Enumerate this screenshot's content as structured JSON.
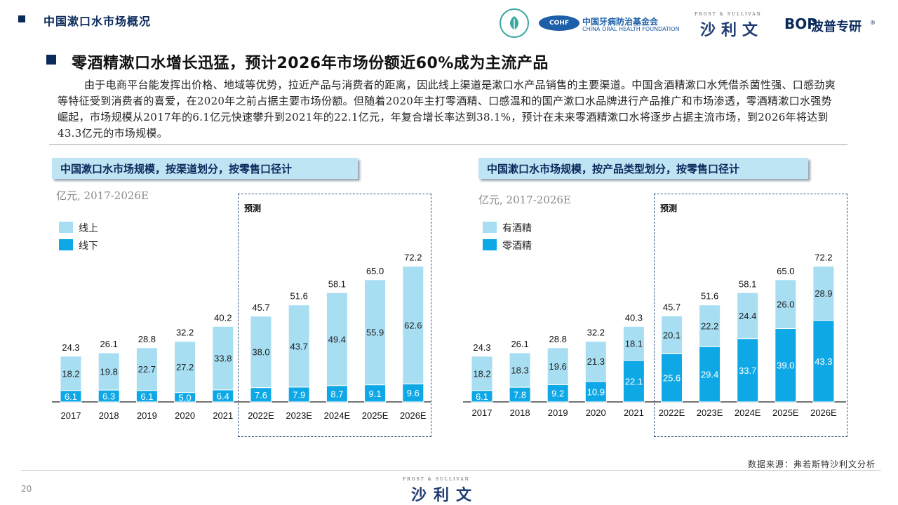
{
  "header": {
    "section_title": "中国漱口水市场概况",
    "logos": {
      "cohf_badge": "COHF",
      "cohf_cn": "中国牙病防治基金会",
      "cohf_en": "CHINA ORAL HEALTH FOUNDATION",
      "fs_en": "FROST & SULLIVAN",
      "fs_cn": "沙利文",
      "bop_en": "BOP",
      "bop_cn": "波普专研",
      "bop_reg": "®"
    }
  },
  "headline": "零酒精漱口水增长迅猛，预计2026年市场份额近60%成为主流产品",
  "paragraph": "由于电商平台能发挥出价格、地域等优势，拉近产品与消费者的距离，因此线上渠道是漱口水产品销售的主要渠道。中国含酒精漱口水凭借杀菌性强、口感劲爽等特征受到消费者的喜爱，在2020年之前占据主要市场份额。但随着2020年主打零酒精、口感温和的国产漱口水品牌进行产品推广和市场渗透，零酒精漱口水强势崛起，市场规模从2017年的6.1亿元快速攀升到2021年的22.1亿元，年复合增长率达到38.1%，预计在未来零酒精漱口水将逐步占据主流市场，到2026年将达到43.3亿元的市场规模。",
  "colors": {
    "light": "#a8def2",
    "dark": "#0fa8e6",
    "navy": "#0b2a5c"
  },
  "chart_data": [
    {
      "type": "bar",
      "stacked": true,
      "title": "中国漱口水市场规模，按渠道划分，按零售口径计",
      "unit": "亿元, 2017-2026E",
      "forecast_label": "预测",
      "categories": [
        "2017",
        "2018",
        "2019",
        "2020",
        "2021",
        "2022E",
        "2023E",
        "2024E",
        "2025E",
        "2026E"
      ],
      "series": [
        {
          "name": "线下",
          "color": "#0fa8e6",
          "values": [
            6.1,
            6.3,
            6.1,
            5.0,
            6.4,
            7.6,
            7.9,
            8.7,
            9.1,
            9.6
          ]
        },
        {
          "name": "线上",
          "color": "#a8def2",
          "values": [
            18.2,
            19.8,
            22.7,
            27.2,
            33.8,
            38.0,
            43.7,
            49.4,
            55.9,
            62.6
          ]
        }
      ],
      "totals": [
        "24.3",
        "26.1",
        "28.8",
        "32.2",
        "40.2",
        "45.7",
        "51.6",
        "58.1",
        "65.0",
        "72.2"
      ],
      "legend_position": "top-left"
    },
    {
      "type": "bar",
      "stacked": true,
      "title": "中国漱口水市场规模，按产品类型划分，按零售口径计",
      "unit": "亿元, 2017-2026E",
      "forecast_label": "预测",
      "categories": [
        "2017",
        "2018",
        "2019",
        "2020",
        "2021",
        "2022E",
        "2023E",
        "2024E",
        "2025E",
        "2026E"
      ],
      "series": [
        {
          "name": "零酒精",
          "color": "#0fa8e6",
          "values": [
            6.1,
            7.8,
            9.2,
            10.9,
            22.1,
            25.6,
            29.4,
            33.7,
            39.0,
            43.3
          ]
        },
        {
          "name": "有酒精",
          "color": "#a8def2",
          "values": [
            18.2,
            18.3,
            19.6,
            21.3,
            18.1,
            20.1,
            22.2,
            24.4,
            26.0,
            28.9
          ]
        }
      ],
      "totals": [
        "24.3",
        "26.1",
        "28.8",
        "32.2",
        "40.3",
        "45.7",
        "51.6",
        "58.1",
        "65.0",
        "72.2"
      ],
      "legend_position": "top-left"
    }
  ],
  "footer": {
    "source": "数据来源：弗若斯特沙利文分析",
    "page_number": "20",
    "fs_en": "FROST & SULLIVAN",
    "fs_cn": "沙利文"
  }
}
